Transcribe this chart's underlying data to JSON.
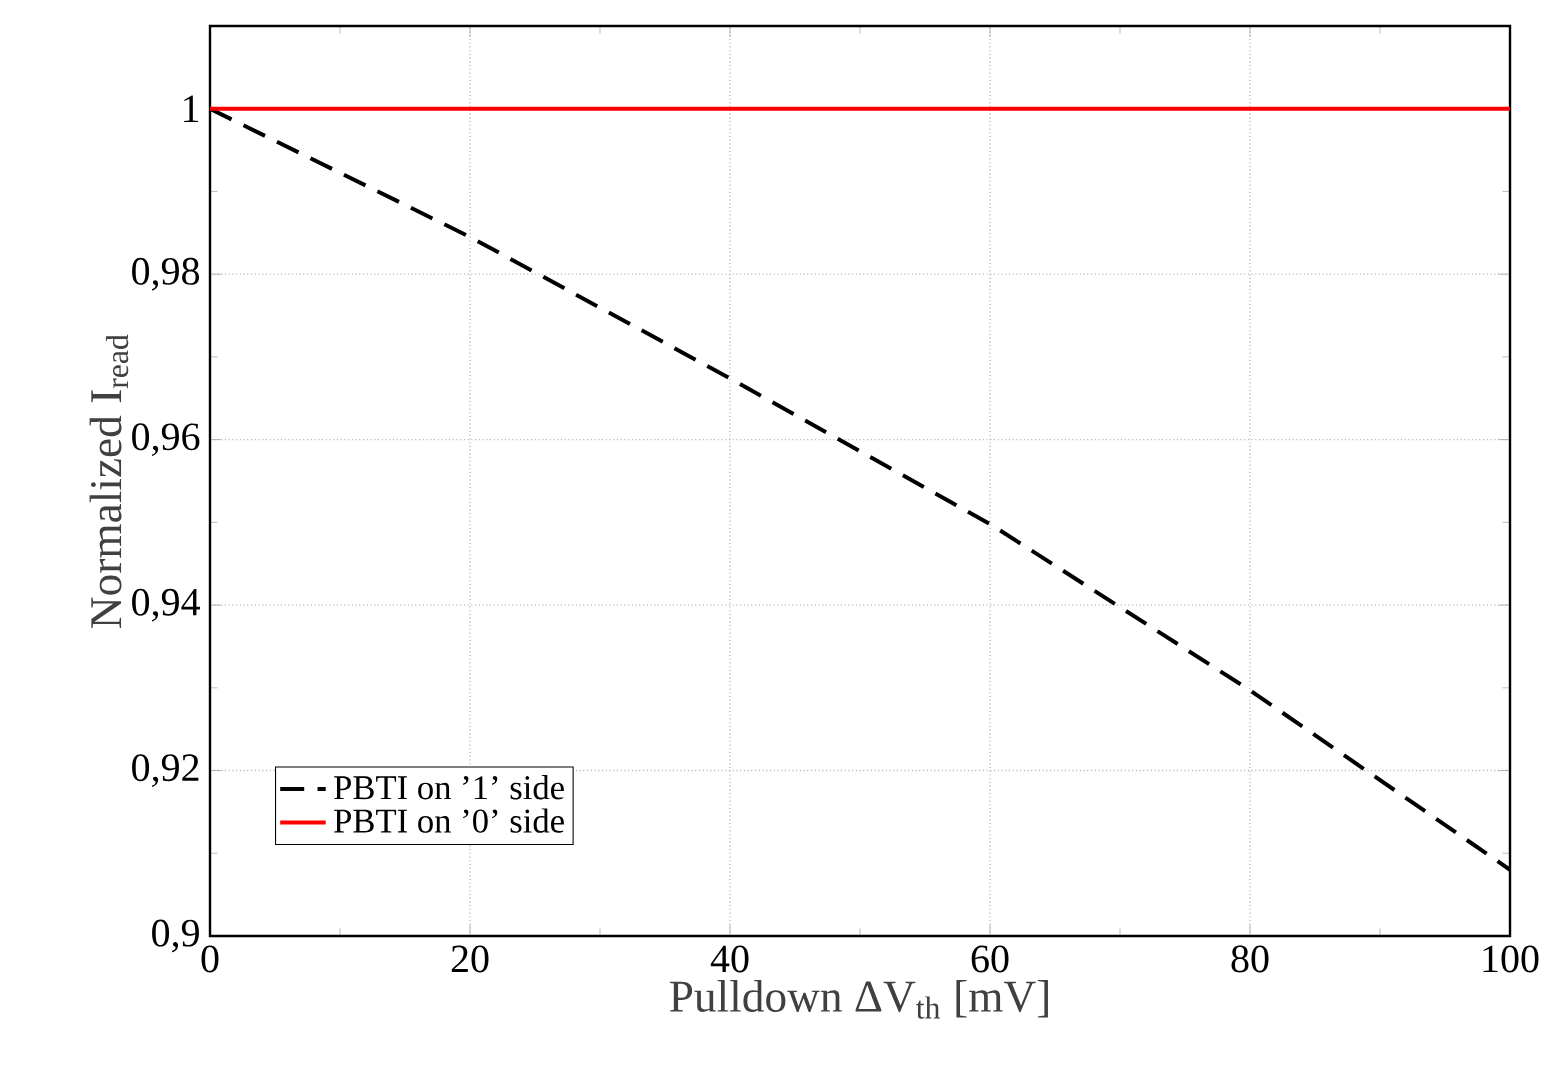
{
  "chart_data": {
    "type": "line",
    "xlabel": "Pulldown ΔV$_{th}$ [mV]",
    "ylabel": "Normalized I$_{read}$",
    "xlim": [
      0,
      100
    ],
    "ylim": [
      0.9,
      1.01
    ],
    "xticks": [
      0,
      20,
      40,
      60,
      80,
      100
    ],
    "yticks": [
      {
        "value": 0.9,
        "label": "0,9"
      },
      {
        "value": 0.92,
        "label": "0,92"
      },
      {
        "value": 0.94,
        "label": "0,94"
      },
      {
        "value": 0.96,
        "label": "0,96"
      },
      {
        "value": 0.98,
        "label": "0,98"
      },
      1
    ],
    "grid": true,
    "legend": "bottom left",
    "series": [
      {
        "name": "PBTI on ’1’ side",
        "color": "#000000",
        "line_style": "dashed",
        "x": [
          0,
          20,
          40,
          60,
          80,
          100
        ],
        "values": [
          1.0,
          0.9845,
          0.9674,
          0.9498,
          0.9297,
          0.908
        ]
      },
      {
        "name": "PBTI on ’0’ side",
        "color": "#ff0000",
        "line_style": "solid",
        "x": [
          0,
          100
        ],
        "values": [
          1.0,
          1.0
        ]
      }
    ]
  }
}
